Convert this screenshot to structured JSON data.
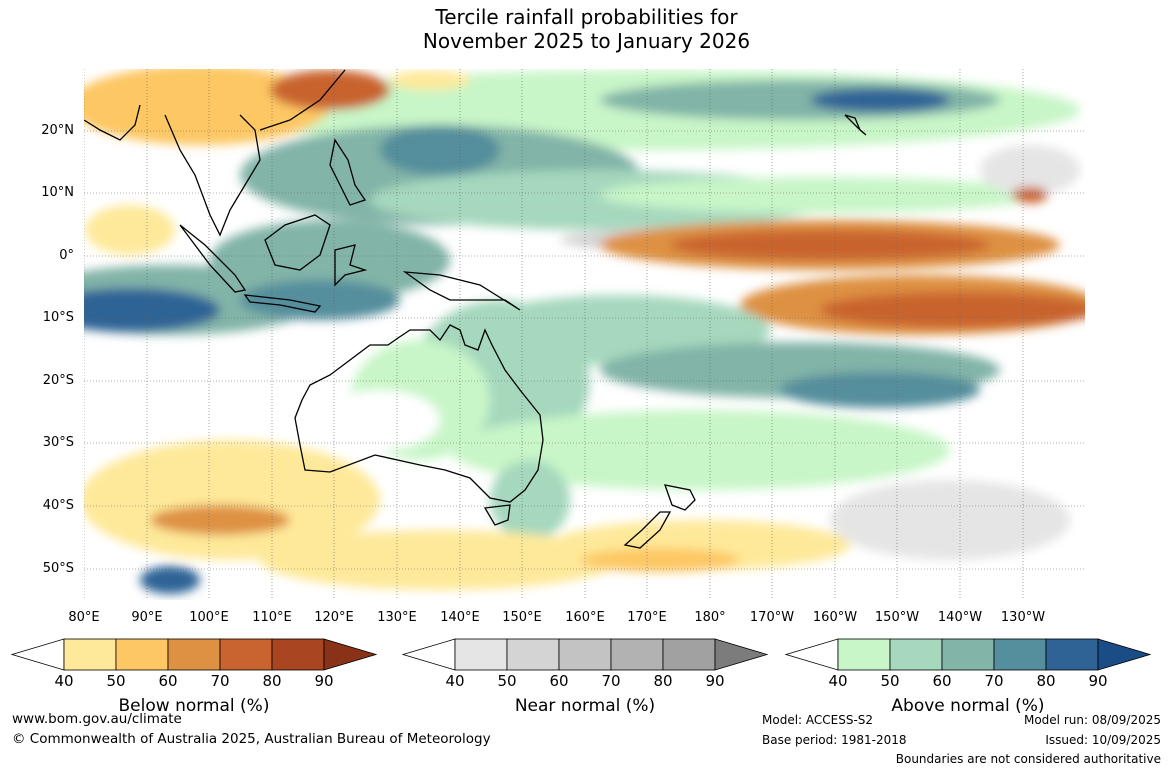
{
  "title_line1": "Tercile rainfall probabilities for",
  "title_line2": "November 2025 to January 2026",
  "lat_labels": [
    "20°N",
    "10°N",
    "0°",
    "10°S",
    "20°S",
    "30°S",
    "40°S",
    "50°S"
  ],
  "lon_labels": [
    "80°E",
    "90°E",
    "100°E",
    "110°E",
    "120°E",
    "130°E",
    "140°E",
    "150°E",
    "160°E",
    "170°E",
    "180°",
    "170°W",
    "160°W",
    "150°W",
    "140°W",
    "130°W"
  ],
  "colorbars": [
    {
      "title": "Below normal (%)",
      "ticks": [
        "40",
        "50",
        "60",
        "70",
        "80",
        "90"
      ],
      "colors": [
        "#ffffff",
        "#fee99a",
        "#fdc764",
        "#de9143",
        "#c9632f",
        "#aa4521",
        "#8a3218"
      ]
    },
    {
      "title": "Near normal (%)",
      "ticks": [
        "40",
        "50",
        "60",
        "70",
        "80",
        "90"
      ],
      "colors": [
        "#ffffff",
        "#e5e5e5",
        "#d4d4d4",
        "#c3c3c3",
        "#b2b2b2",
        "#a1a1a1",
        "#7c7c7c"
      ]
    },
    {
      "title": "Above normal (%)",
      "ticks": [
        "40",
        "50",
        "60",
        "70",
        "80",
        "90"
      ],
      "colors": [
        "#ffffff",
        "#c8f6c8",
        "#a6d8be",
        "#82b4a8",
        "#558e9c",
        "#2f6396",
        "#1a4d85"
      ]
    }
  ],
  "footer": {
    "website": "www.bom.gov.au/climate",
    "copyright": "© Commonwealth of Australia 2025, Australian Bureau of Meteorology",
    "model": "Model: ACCESS-S2",
    "base_period": "Base period: 1981-2018",
    "model_run": "Model run: 08/09/2025",
    "issued": "Issued: 10/09/2025",
    "boundaries": "Boundaries are not considered authoritative"
  },
  "map_palette": {
    "land_outline": "#000000",
    "grid": "#555555"
  }
}
